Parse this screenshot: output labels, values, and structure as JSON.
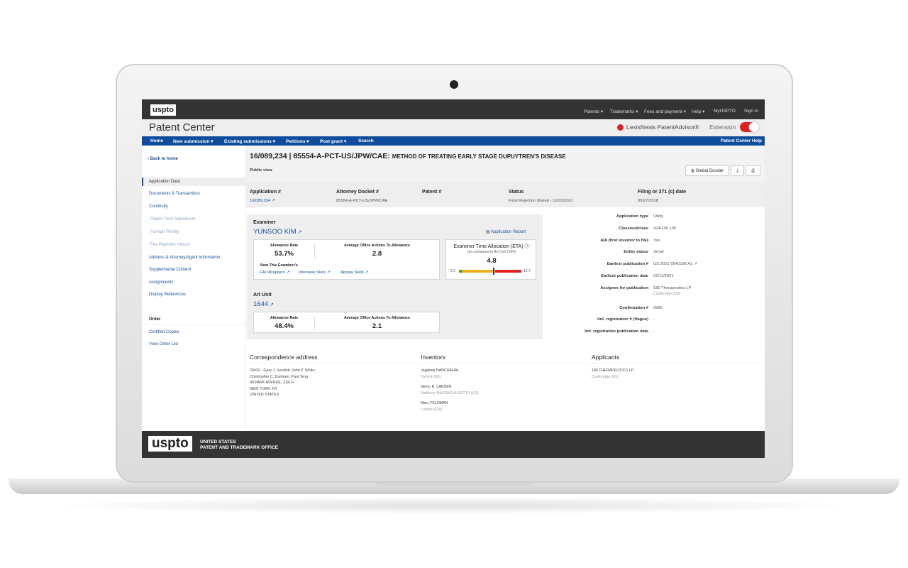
{
  "topbar": {
    "logo": "uspto",
    "menu": [
      "Patents ▾",
      "Trademarks ▾",
      "Fees and payment ▾",
      "Help ▾",
      "MyUSPTO",
      "Sign in"
    ]
  },
  "titlebar": {
    "title": "Patent Center",
    "extension_label": "LexisNexis PatentAdvisor®",
    "extension_suffix": "Extension",
    "extension_enabled": true,
    "accent": "#e02020"
  },
  "nav": {
    "items": [
      "Home",
      "New submission ▾",
      "Existing submissions ▾",
      "Petitions ▾",
      "Post grant ▾",
      "Search"
    ],
    "help": "Patent Center Help"
  },
  "sidebar": {
    "back": "‹ Back to home",
    "items": [
      {
        "label": "Application Data",
        "active": true
      },
      {
        "label": "Documents & Transactions"
      },
      {
        "label": "Continuity"
      },
      {
        "label": "Patent Term Adjustment",
        "disabled": true
      },
      {
        "label": "Foreign Priority",
        "disabled": true
      },
      {
        "label": "Fee Payment History",
        "disabled": true
      },
      {
        "label": "Address & Attorney/Agent Information"
      },
      {
        "label": "Supplemental Content"
      },
      {
        "label": "Assignments"
      },
      {
        "label": "Display References"
      }
    ],
    "order_heading": "Order",
    "order_items": [
      "Certified Copies",
      "View Order List"
    ]
  },
  "header": {
    "title_id": "16/089,234 | 85554-A-PCT-US/JPW/CAE:",
    "title_name": "METHOD OF TREATING EARLY STAGE DUPUYTREN'S DISEASE",
    "view": "Public view",
    "global_dossier": "Global Dossier"
  },
  "summary": [
    {
      "label": "Application #",
      "value": "16/089,234"
    },
    {
      "label": "Attorney Docket #",
      "value": "85554-A-PCT-US/JPW/CAE"
    },
    {
      "label": "Patent #",
      "value": ""
    },
    {
      "label": "Status",
      "value": "Final Rejection Mailed - 12/03/2021"
    },
    {
      "label": "Filing or 371 (c) date",
      "value": "09/27/2018"
    }
  ],
  "examiner": {
    "heading": "Examiner",
    "name": "YUNSOO KIM",
    "report": "Application Report",
    "allow_label": "Allowance Rate",
    "allow": "53.7%",
    "oa_label": "Average Office Actions To Allowance",
    "oa": "2.8",
    "view_label": "View This Examiner's",
    "links": [
      "File Wrappers",
      "Interview Stats",
      "Appeal Stats"
    ],
    "eta_title": "Examiner Time Allocation (ETA)",
    "eta_sub": "(as compared to Art Unit 1644)",
    "eta": "4.8",
    "eta_min": "2.2",
    "eta_max": "12.7",
    "eta_value": 4.8,
    "eta_min_value": 2.2,
    "eta_max_value": 12.7
  },
  "art_unit": {
    "heading": "Art Unit",
    "number": "1644",
    "allow_label": "Allowance Rate",
    "allow": "48.4%",
    "oa_label": "Average Office Actions To Allowance",
    "oa": "2.1"
  },
  "details": [
    {
      "label": "Application type",
      "value": "Utility"
    },
    {
      "label": "Class/subclass",
      "value": "424/145.100"
    },
    {
      "label": "AIA (first inventor to file)",
      "value": "Yes"
    },
    {
      "label": "Entity status",
      "value": "Small"
    },
    {
      "label": "Earliest publication #",
      "value": "US 2021-0040196 A1"
    },
    {
      "label": "Earliest publication date",
      "value": "02/11/2021"
    },
    {
      "label": "Assignee for publication",
      "value": "180 Therapeutics LP",
      "sub": "Cambridge (US)"
    },
    {
      "label": "Confirmation #",
      "value": "9955"
    },
    {
      "label": "Intl. registration # (Hague)",
      "value": "-"
    },
    {
      "label": "Intl. registration publication date",
      "value": "-"
    }
  ],
  "correspondence": {
    "heading": "Correspondence address",
    "lines": [
      "23432 - Gary J. Gershik; John P. White;",
      "Christopher C. Dunham; Paul Teng",
      "90 PARK AVENUE, 21st Fl",
      "NEW YORK, NY",
      "UNITED STATES"
    ]
  },
  "inventors": {
    "heading": "Inventors",
    "people": [
      {
        "name": "Jagdeep NANCHAHAL",
        "loc": "Oxford (GB)"
      },
      {
        "name": "Glenn R. LARSEN",
        "loc": "Sudbury, MASSACHUSETTS (US)"
      },
      {
        "name": "Marc FELDMAN",
        "loc": "London (GB)"
      }
    ]
  },
  "applicants": {
    "heading": "Applicants",
    "people": [
      {
        "name": "180 THERAPEUTICS LP",
        "loc": "Cambridge (US)"
      }
    ]
  },
  "footer": {
    "logo": "uspto",
    "line1": "UNITED STATES",
    "line2": "PATENT AND TRADEMARK OFFICE"
  }
}
